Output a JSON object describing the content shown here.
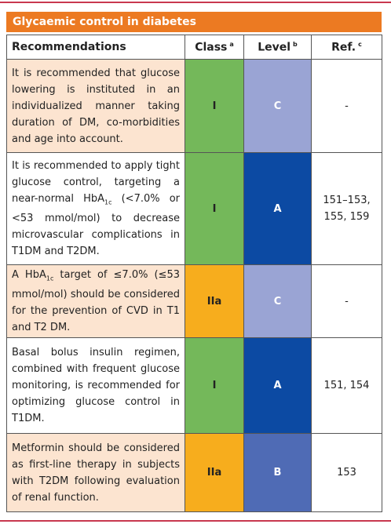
{
  "title": "Glycaemic control in diabetes",
  "table": {
    "header": [
      {
        "text": "Recommendations"
      },
      {
        "text": "Class",
        "note": "a"
      },
      {
        "text": "Level",
        "note": "b"
      },
      {
        "text": "Ref.",
        "note": "c"
      }
    ],
    "rows": [
      {
        "recommendation": [
          "It is recommended that glucose lowering is instituted in an individualized manner taking duration of DM, co-morbidities and age into account."
        ],
        "class": "I",
        "level": "C",
        "ref": "-"
      },
      {
        "recommendation": [
          "It is recommended to apply tight glucose control, targeting a near-normal HbA",
          "1c",
          " (<7.0% or <53 mmol/mol) to decrease microvascular complications in T1DM and T2DM."
        ],
        "class": "I",
        "level": "A",
        "ref": "151–153, 155, 159"
      },
      {
        "recommendation": [
          "A HbA",
          "1c",
          " target of ≤7.0% (≤53 mmol/mol) should be considered for the prevention of CVD in T1 and T2 DM."
        ],
        "class": "IIa",
        "level": "C",
        "ref": "-"
      },
      {
        "recommendation": [
          "Basal bolus insulin regimen, combined with frequent glucose monitoring, is recommended for optimizing glucose control in T1DM."
        ],
        "class": "I",
        "level": "A",
        "ref": "151, 154"
      },
      {
        "recommendation": [
          "Metformin should be considered as first-line therapy in subjects with T2DM following evaluation of renal function."
        ],
        "class": "IIa",
        "level": "B",
        "ref": "153"
      }
    ]
  }
}
